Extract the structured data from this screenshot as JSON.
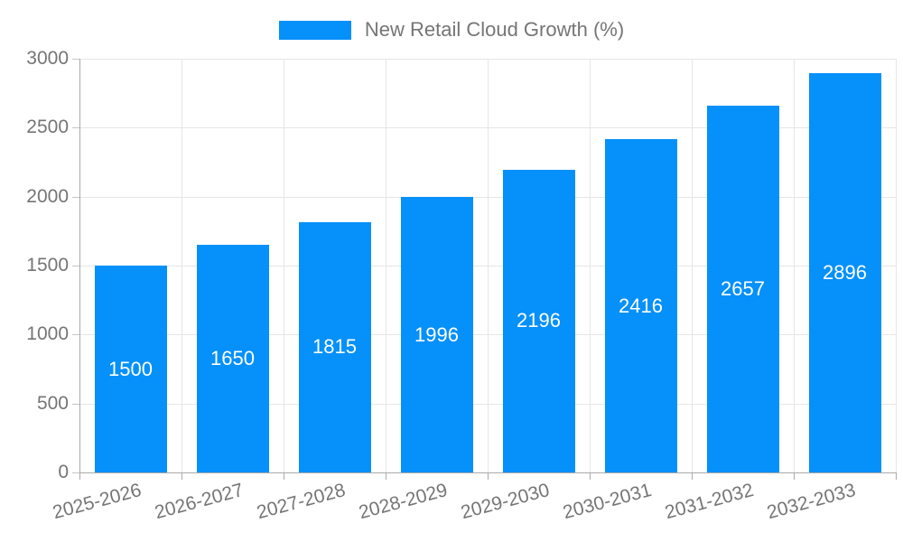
{
  "legend": {
    "label": "New Retail Cloud Growth (%)"
  },
  "colors": {
    "bar": "#0590fa",
    "grid": "#e6e6e6",
    "axis": "#aaaaaa",
    "tickmark": "#c4c4c4",
    "text": "#757575",
    "value_text": "#ffffff",
    "background": "#ffffff"
  },
  "chart_data": {
    "type": "bar",
    "title": "",
    "xlabel": "",
    "ylabel": "",
    "categories": [
      "2025-2026",
      "2026-2027",
      "2027-2028",
      "2028-2029",
      "2029-2030",
      "2030-2031",
      "2031-2032",
      "2032-2033"
    ],
    "series": [
      {
        "name": "New Retail Cloud Growth (%)",
        "values": [
          1500,
          1650,
          1815,
          1996,
          2196,
          2416,
          2657,
          2896
        ]
      }
    ],
    "value_labels": [
      "1500",
      "1650",
      "1815",
      "1996",
      "2196",
      "2416",
      "2657",
      "2896"
    ],
    "ylim": [
      0,
      3000
    ],
    "ytick_step": 500,
    "ytick_labels": [
      "0",
      "500",
      "1000",
      "1500",
      "2000",
      "2500",
      "3000"
    ],
    "grid": true,
    "legend_position": "top-center",
    "value_label_position": "inside-center",
    "x_label_rotation_deg": -15
  }
}
